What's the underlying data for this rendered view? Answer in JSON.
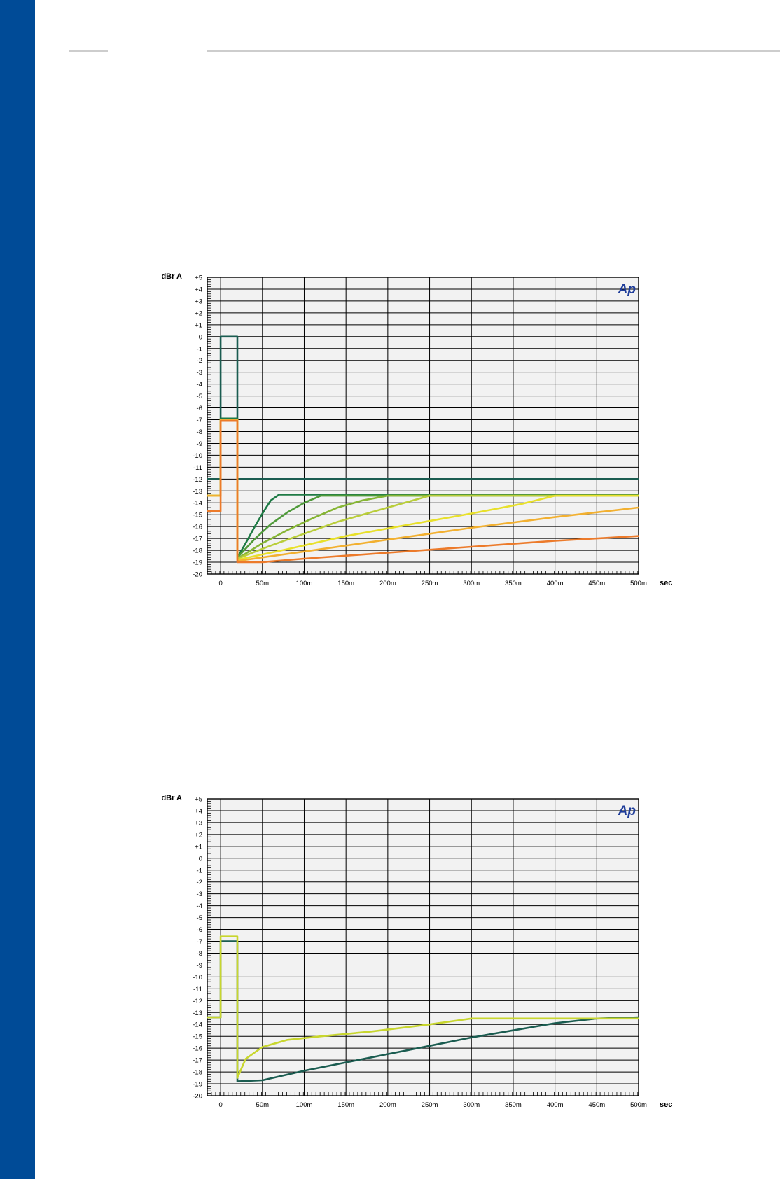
{
  "page": {
    "sidebar_color": "#004b97",
    "rule_color": "#cdcdcd"
  },
  "chart_data": [
    {
      "type": "line",
      "ylabel": "dBr A",
      "xlabel": "sec",
      "logo": "Ap",
      "xlim": [
        -0.016,
        0.5
      ],
      "ylim": [
        -20,
        5
      ],
      "y_ticks": [
        "+5",
        "+4",
        "+3",
        "+2",
        "+1",
        "0",
        "-1",
        "-2",
        "-3",
        "-4",
        "-5",
        "-6",
        "-7",
        "-8",
        "-9",
        "-10",
        "-11",
        "-12",
        "-13",
        "-14",
        "-15",
        "-16",
        "-17",
        "-18",
        "-19",
        "-20"
      ],
      "x_ticks": [
        {
          "value": 0,
          "label": "0"
        },
        {
          "value": 0.05,
          "label": "50m"
        },
        {
          "value": 0.1,
          "label": "100m"
        },
        {
          "value": 0.15,
          "label": "150m"
        },
        {
          "value": 0.2,
          "label": "200m"
        },
        {
          "value": 0.25,
          "label": "250m"
        },
        {
          "value": 0.3,
          "label": "300m"
        },
        {
          "value": 0.35,
          "label": "350m"
        },
        {
          "value": 0.4,
          "label": "400m"
        },
        {
          "value": 0.45,
          "label": "450m"
        },
        {
          "value": 0.5,
          "label": "500m"
        }
      ],
      "grid": true,
      "background": "#f2f2f2",
      "series": [
        {
          "color": "#1a5c50",
          "points": [
            [
              -0.016,
              -12
            ],
            [
              0,
              -12
            ],
            [
              0,
              0
            ],
            [
              0.02,
              0
            ],
            [
              0.02,
              -12
            ],
            [
              0.5,
              -12
            ]
          ]
        },
        {
          "color": "#1e7a45",
          "points": [
            [
              -0.016,
              -13.4
            ],
            [
              0,
              -13.4
            ],
            [
              0,
              -6.9
            ],
            [
              0.02,
              -6.9
            ],
            [
              0.02,
              -18.6
            ],
            [
              0.03,
              -17.4
            ],
            [
              0.04,
              -16.1
            ],
            [
              0.05,
              -14.9
            ],
            [
              0.06,
              -13.8
            ],
            [
              0.07,
              -13.3
            ],
            [
              0.5,
              -13.3
            ]
          ]
        },
        {
          "color": "#4f9a3a",
          "points": [
            [
              -0.016,
              -13.4
            ],
            [
              0,
              -13.4
            ],
            [
              0,
              -7
            ],
            [
              0.02,
              -7
            ],
            [
              0.02,
              -18.6
            ],
            [
              0.04,
              -17.1
            ],
            [
              0.06,
              -15.8
            ],
            [
              0.08,
              -14.8
            ],
            [
              0.1,
              -14
            ],
            [
              0.12,
              -13.4
            ],
            [
              0.5,
              -13.4
            ]
          ]
        },
        {
          "color": "#86b535",
          "points": [
            [
              -0.016,
              -13.4
            ],
            [
              0,
              -13.4
            ],
            [
              0,
              -7
            ],
            [
              0.02,
              -7
            ],
            [
              0.02,
              -18.7
            ],
            [
              0.05,
              -17.4
            ],
            [
              0.08,
              -16.3
            ],
            [
              0.11,
              -15.3
            ],
            [
              0.14,
              -14.4
            ],
            [
              0.17,
              -13.8
            ],
            [
              0.2,
              -13.4
            ],
            [
              0.5,
              -13.4
            ]
          ]
        },
        {
          "color": "#b9cd3a",
          "points": [
            [
              -0.016,
              -13.4
            ],
            [
              0,
              -13.4
            ],
            [
              0,
              -7
            ],
            [
              0.02,
              -7
            ],
            [
              0.02,
              -18.7
            ],
            [
              0.06,
              -17.6
            ],
            [
              0.1,
              -16.6
            ],
            [
              0.14,
              -15.6
            ],
            [
              0.18,
              -14.8
            ],
            [
              0.22,
              -14
            ],
            [
              0.25,
              -13.4
            ],
            [
              0.5,
              -13.4
            ]
          ]
        },
        {
          "color": "#e8e02a",
          "points": [
            [
              -0.016,
              -13.4
            ],
            [
              0,
              -13.4
            ],
            [
              0,
              -7
            ],
            [
              0.02,
              -7
            ],
            [
              0.02,
              -18.8
            ],
            [
              0.08,
              -17.9
            ],
            [
              0.15,
              -16.8
            ],
            [
              0.22,
              -15.9
            ],
            [
              0.3,
              -14.9
            ],
            [
              0.36,
              -14.1
            ],
            [
              0.4,
              -13.4
            ],
            [
              0.5,
              -13.4
            ]
          ]
        },
        {
          "color": "#f2b030",
          "points": [
            [
              -0.016,
              -13.4
            ],
            [
              0,
              -13.4
            ],
            [
              0,
              -7
            ],
            [
              0.02,
              -7
            ],
            [
              0.02,
              -18.9
            ],
            [
              0.1,
              -18.1
            ],
            [
              0.2,
              -17.1
            ],
            [
              0.3,
              -16.1
            ],
            [
              0.4,
              -15.2
            ],
            [
              0.5,
              -14.4
            ]
          ]
        },
        {
          "color": "#ec7a2a",
          "points": [
            [
              -0.016,
              -14.7
            ],
            [
              0,
              -14.7
            ],
            [
              0,
              -7.1
            ],
            [
              0.02,
              -7.1
            ],
            [
              0.02,
              -19
            ],
            [
              0.05,
              -19
            ],
            [
              0.1,
              -18.7
            ],
            [
              0.2,
              -18.2
            ],
            [
              0.3,
              -17.7
            ],
            [
              0.4,
              -17.2
            ],
            [
              0.5,
              -16.8
            ]
          ]
        }
      ]
    },
    {
      "type": "line",
      "ylabel": "dBr A",
      "xlabel": "sec",
      "logo": "Ap",
      "xlim": [
        -0.016,
        0.5
      ],
      "ylim": [
        -20,
        5
      ],
      "y_ticks": [
        "+5",
        "+4",
        "+3",
        "+2",
        "+1",
        "0",
        "-1",
        "-2",
        "-3",
        "-4",
        "-5",
        "-6",
        "-7",
        "-8",
        "-9",
        "-10",
        "-11",
        "-12",
        "-13",
        "-14",
        "-15",
        "-16",
        "-17",
        "-18",
        "-19",
        "-20"
      ],
      "x_ticks": [
        {
          "value": 0,
          "label": "0"
        },
        {
          "value": 0.05,
          "label": "50m"
        },
        {
          "value": 0.1,
          "label": "100m"
        },
        {
          "value": 0.15,
          "label": "150m"
        },
        {
          "value": 0.2,
          "label": "200m"
        },
        {
          "value": 0.25,
          "label": "250m"
        },
        {
          "value": 0.3,
          "label": "300m"
        },
        {
          "value": 0.35,
          "label": "350m"
        },
        {
          "value": 0.4,
          "label": "400m"
        },
        {
          "value": 0.45,
          "label": "450m"
        },
        {
          "value": 0.5,
          "label": "500m"
        }
      ],
      "grid": true,
      "background": "#f2f2f2",
      "series": [
        {
          "color": "#1a5c50",
          "points": [
            [
              -0.016,
              -13.4
            ],
            [
              0,
              -13.4
            ],
            [
              0,
              -7
            ],
            [
              0.02,
              -7
            ],
            [
              0.02,
              -18.8
            ],
            [
              0.05,
              -18.7
            ],
            [
              0.1,
              -17.9
            ],
            [
              0.15,
              -17.2
            ],
            [
              0.2,
              -16.5
            ],
            [
              0.25,
              -15.8
            ],
            [
              0.3,
              -15.1
            ],
            [
              0.35,
              -14.5
            ],
            [
              0.4,
              -13.9
            ],
            [
              0.45,
              -13.5
            ],
            [
              0.5,
              -13.4
            ]
          ]
        },
        {
          "color": "#c8d62e",
          "points": [
            [
              -0.016,
              -13.4
            ],
            [
              0,
              -13.4
            ],
            [
              0,
              -6.6
            ],
            [
              0.02,
              -6.6
            ],
            [
              0.02,
              -18.5
            ],
            [
              0.03,
              -16.9
            ],
            [
              0.05,
              -15.9
            ],
            [
              0.08,
              -15.3
            ],
            [
              0.12,
              -15
            ],
            [
              0.18,
              -14.6
            ],
            [
              0.25,
              -14
            ],
            [
              0.3,
              -13.5
            ],
            [
              0.5,
              -13.5
            ]
          ]
        }
      ]
    }
  ]
}
